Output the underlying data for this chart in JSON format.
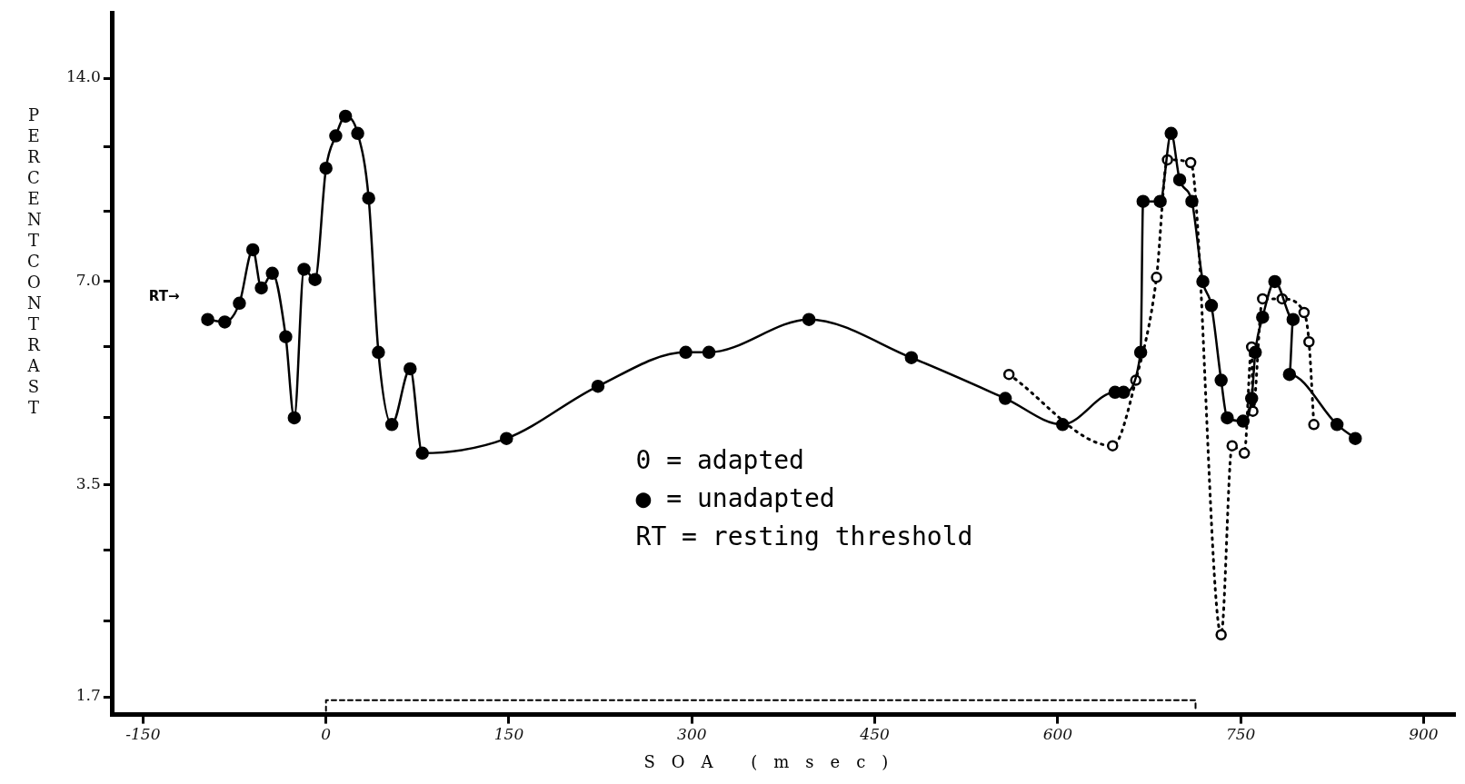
{
  "chart_data": {
    "type": "line",
    "xlabel": "SOA (msec)",
    "ylabel": "PERCENT CONTRAST",
    "log": "y",
    "grid": false,
    "legend": false,
    "xlim": [
      -175,
      925
    ],
    "xticks": [
      -150,
      0,
      150,
      300,
      450,
      600,
      750,
      900
    ],
    "ylim": [
      1.6,
      17.5
    ],
    "yticks": [
      1.7,
      {
        "value": 2.2,
        "label": null
      },
      {
        "value": 2.8,
        "label": null
      },
      3.5,
      {
        "value": 4.4,
        "label": null
      },
      {
        "value": 5.6,
        "label": null
      },
      {
        "value": 7,
        "label": "7.0"
      },
      {
        "value": 8.9,
        "label": null
      },
      {
        "value": 11.1,
        "label": null
      },
      {
        "value": 14,
        "label": "14.0"
      }
    ],
    "series": [
      {
        "color": "#000000",
        "marker": "circle",
        "line_style": "solid",
        "x": [
          -97,
          -83,
          -71,
          -60,
          -53,
          -44,
          -33,
          -26,
          -18,
          -9,
          0,
          8,
          16,
          26,
          35,
          43,
          54,
          69,
          79,
          148,
          223,
          295,
          314,
          396,
          480,
          557,
          604,
          647,
          654,
          668,
          670,
          684,
          693,
          700,
          710,
          719,
          726,
          734,
          739,
          752,
          759,
          762,
          768,
          778,
          793,
          790,
          829,
          844
        ],
        "values": [
          6.15,
          6.1,
          6.5,
          7.8,
          6.85,
          7.2,
          5.8,
          4.4,
          7.3,
          7.05,
          10.3,
          11.5,
          12.3,
          11.6,
          9.3,
          5.5,
          4.3,
          5.2,
          3.9,
          4.1,
          4.9,
          5.5,
          5.5,
          6.15,
          5.4,
          4.7,
          4.3,
          4.8,
          4.8,
          5.5,
          9.2,
          9.2,
          11.6,
          9.9,
          9.2,
          7.0,
          6.45,
          5.0,
          4.4,
          4.35,
          4.7,
          5.5,
          6.2,
          7.0,
          6.15,
          5.1,
          4.3,
          4.1
        ]
      },
      {
        "color": "#000000",
        "marker": "circle",
        "line_style": "dotted",
        "x": [
          560,
          645,
          664,
          681,
          690,
          709,
          734,
          743,
          753,
          759,
          760,
          768,
          784,
          802,
          806,
          810
        ],
        "values": [
          5.1,
          4.0,
          5.0,
          7.1,
          10.6,
          10.5,
          2.1,
          4.0,
          3.9,
          5.6,
          4.5,
          6.6,
          6.6,
          6.3,
          5.7,
          4.3
        ]
      },
      {
        "color": "#000000",
        "marker": "none",
        "line_style": "dashed",
        "x": [
          0,
          0,
          713,
          713
        ],
        "values": [
          1.62,
          1.68,
          1.68,
          1.62
        ]
      }
    ],
    "annotations": [
      "RT→",
      "0 = adapted",
      "● = unadapted",
      "RT = resting threshold"
    ]
  }
}
